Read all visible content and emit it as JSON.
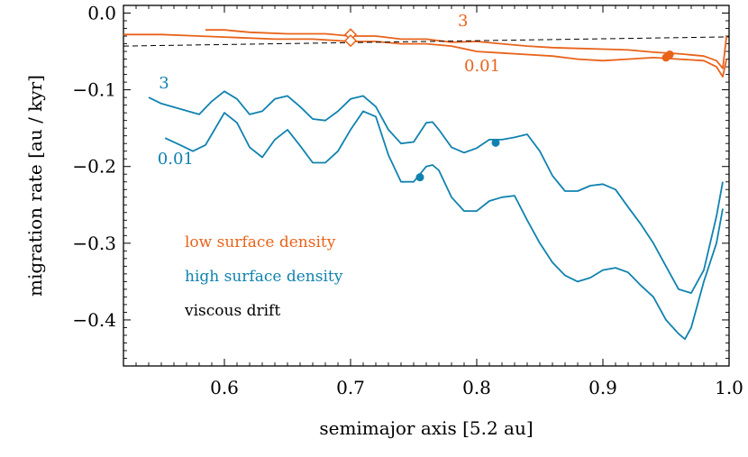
{
  "chart_data": {
    "type": "line",
    "xlabel": "semimajor axis [5.2 au]",
    "ylabel": "migration rate [au / kyr]",
    "xlim": [
      0.52,
      1.0
    ],
    "ylim": [
      -0.46,
      0.01
    ],
    "xticks": [
      0.6,
      0.7,
      0.8,
      0.9,
      1.0
    ],
    "xtick_labels": [
      "0.6",
      "0.7",
      "0.8",
      "0.9",
      "1.0"
    ],
    "yticks": [
      0.0,
      -0.1,
      -0.2,
      -0.3,
      -0.4
    ],
    "ytick_labels": [
      "0.0",
      "−0.1",
      "−0.2",
      "−0.3",
      "−0.4"
    ],
    "grid": false,
    "colors": {
      "low": "#e8631a",
      "high": "#1082b0",
      "drift": "#000000"
    },
    "legend": {
      "position": "lower-left",
      "entries": [
        {
          "label": "low surface density",
          "color": "#e8631a"
        },
        {
          "label": "high surface density",
          "color": "#1082b0"
        },
        {
          "label": "viscous drift",
          "color": "#000000"
        }
      ]
    },
    "series": [
      {
        "group": "low",
        "label": "3",
        "color": "#e8631a",
        "x": [
          0.585,
          0.6,
          0.62,
          0.65,
          0.68,
          0.7,
          0.72,
          0.74,
          0.76,
          0.78,
          0.8,
          0.82,
          0.84,
          0.86,
          0.88,
          0.9,
          0.92,
          0.94,
          0.96,
          0.98,
          0.99,
          0.995,
          0.998
        ],
        "y": [
          -0.022,
          -0.022,
          -0.025,
          -0.027,
          -0.027,
          -0.03,
          -0.03,
          -0.034,
          -0.034,
          -0.038,
          -0.037,
          -0.04,
          -0.043,
          -0.045,
          -0.046,
          -0.047,
          -0.048,
          -0.051,
          -0.053,
          -0.056,
          -0.062,
          -0.072,
          -0.03
        ],
        "marker": {
          "x": 0.953,
          "y": -0.054,
          "type": "dot"
        }
      },
      {
        "group": "low",
        "label": "0.01",
        "color": "#e8631a",
        "x": [
          0.52,
          0.55,
          0.58,
          0.61,
          0.64,
          0.67,
          0.7,
          0.72,
          0.74,
          0.76,
          0.78,
          0.8,
          0.82,
          0.84,
          0.86,
          0.88,
          0.9,
          0.92,
          0.94,
          0.96,
          0.98,
          0.99,
          0.995,
          0.998
        ],
        "y": [
          -0.028,
          -0.028,
          -0.03,
          -0.032,
          -0.034,
          -0.034,
          -0.037,
          -0.037,
          -0.04,
          -0.04,
          -0.043,
          -0.05,
          -0.052,
          -0.054,
          -0.056,
          -0.06,
          -0.062,
          -0.06,
          -0.058,
          -0.06,
          -0.062,
          -0.07,
          -0.083,
          -0.06
        ],
        "marker": {
          "x": 0.95,
          "y": -0.058,
          "type": "dot"
        }
      },
      {
        "group": "high",
        "label": "3",
        "color": "#1082b0",
        "x": [
          0.54,
          0.55,
          0.565,
          0.58,
          0.59,
          0.6,
          0.61,
          0.62,
          0.63,
          0.64,
          0.65,
          0.66,
          0.67,
          0.68,
          0.69,
          0.7,
          0.71,
          0.72,
          0.73,
          0.74,
          0.75,
          0.76,
          0.765,
          0.77,
          0.78,
          0.79,
          0.8,
          0.81,
          0.82,
          0.83,
          0.84,
          0.85,
          0.86,
          0.87,
          0.88,
          0.89,
          0.9,
          0.91,
          0.92,
          0.93,
          0.94,
          0.95,
          0.96,
          0.97,
          0.98,
          0.99,
          0.995
        ],
        "y": [
          -0.11,
          -0.118,
          -0.125,
          -0.132,
          -0.115,
          -0.102,
          -0.112,
          -0.132,
          -0.128,
          -0.112,
          -0.108,
          -0.122,
          -0.138,
          -0.14,
          -0.128,
          -0.112,
          -0.108,
          -0.122,
          -0.152,
          -0.17,
          -0.168,
          -0.143,
          -0.142,
          -0.152,
          -0.175,
          -0.182,
          -0.176,
          -0.165,
          -0.165,
          -0.162,
          -0.158,
          -0.18,
          -0.212,
          -0.232,
          -0.232,
          -0.225,
          -0.223,
          -0.23,
          -0.253,
          -0.275,
          -0.3,
          -0.33,
          -0.36,
          -0.365,
          -0.335,
          -0.265,
          -0.22
        ],
        "marker": {
          "x": 0.815,
          "y": -0.169,
          "type": "dot"
        }
      },
      {
        "group": "high",
        "label": "0.01",
        "color": "#1082b0",
        "x": [
          0.553,
          0.565,
          0.575,
          0.585,
          0.59,
          0.6,
          0.61,
          0.62,
          0.63,
          0.64,
          0.65,
          0.66,
          0.67,
          0.68,
          0.69,
          0.7,
          0.71,
          0.72,
          0.73,
          0.74,
          0.75,
          0.76,
          0.765,
          0.77,
          0.78,
          0.79,
          0.8,
          0.81,
          0.82,
          0.83,
          0.84,
          0.85,
          0.86,
          0.87,
          0.88,
          0.89,
          0.9,
          0.91,
          0.92,
          0.93,
          0.94,
          0.95,
          0.96,
          0.965,
          0.97,
          0.98,
          0.99,
          0.995
        ],
        "y": [
          -0.163,
          -0.172,
          -0.18,
          -0.172,
          -0.158,
          -0.13,
          -0.143,
          -0.175,
          -0.188,
          -0.165,
          -0.152,
          -0.173,
          -0.195,
          -0.195,
          -0.18,
          -0.152,
          -0.128,
          -0.135,
          -0.185,
          -0.22,
          -0.22,
          -0.2,
          -0.198,
          -0.205,
          -0.24,
          -0.258,
          -0.258,
          -0.245,
          -0.24,
          -0.238,
          -0.27,
          -0.3,
          -0.325,
          -0.342,
          -0.35,
          -0.345,
          -0.335,
          -0.332,
          -0.338,
          -0.355,
          -0.37,
          -0.4,
          -0.418,
          -0.425,
          -0.41,
          -0.35,
          -0.3,
          -0.255
        ],
        "marker": {
          "x": 0.755,
          "y": -0.214,
          "type": "dot"
        }
      },
      {
        "group": "drift",
        "label": "viscous drift",
        "color": "#000000",
        "dashed": true,
        "x": [
          0.52,
          1.0
        ],
        "y": [
          -0.043,
          -0.031
        ]
      }
    ],
    "open_markers": [
      {
        "x": 0.7,
        "y": -0.028,
        "color": "#e8631a",
        "type": "diamond"
      },
      {
        "x": 0.7,
        "y": -0.036,
        "color": "#e8631a",
        "type": "diamond"
      }
    ],
    "annotations": [
      {
        "text": "3",
        "x": 0.785,
        "y": -0.017,
        "color": "#e8631a"
      },
      {
        "text": "0.01",
        "x": 0.79,
        "y": -0.076,
        "color": "#e8631a"
      },
      {
        "text": "3",
        "x": 0.548,
        "y": -0.098,
        "color": "#1082b0"
      },
      {
        "text": "0.01",
        "x": 0.547,
        "y": -0.197,
        "color": "#1082b0"
      }
    ]
  }
}
